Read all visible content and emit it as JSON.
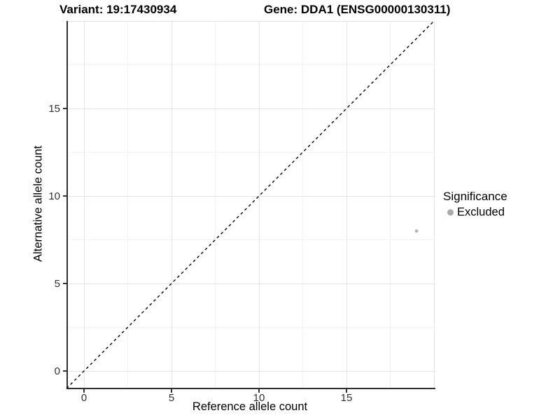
{
  "chart_data": {
    "type": "scatter",
    "title_left": "Variant: 19:17430934",
    "title_right": "Gene: DDA1 (ENSG00000130311)",
    "xlabel": "Reference allele count",
    "ylabel": "Alternative allele count",
    "xlim": [
      -1,
      20
    ],
    "ylim": [
      -1,
      20
    ],
    "xticks": [
      0,
      5,
      10,
      15
    ],
    "yticks": [
      0,
      5,
      10,
      15
    ],
    "major_gridlines": [
      0,
      5,
      10,
      15,
      20
    ],
    "minor_gridlines": [
      2.5,
      7.5,
      12.5,
      17.5
    ],
    "grid": "on",
    "points": [
      {
        "x": 19,
        "y": 8,
        "significance": "Excluded"
      }
    ],
    "reference_line": {
      "type": "identity",
      "x1": -1,
      "y1": -1,
      "x2": 20,
      "y2": 20,
      "style": "dashed",
      "color": "#000000"
    },
    "legend": {
      "title": "Significance",
      "position": "right",
      "entries": [
        {
          "label": "Excluded",
          "color": "#a9a9a9"
        }
      ]
    },
    "colors": {
      "point": "#b5b5b5",
      "axis_line": "#2f2f2f",
      "grid_major": "#e4e4e4",
      "grid_minor": "#f3f3f3",
      "dashed_line": "#000000"
    }
  }
}
